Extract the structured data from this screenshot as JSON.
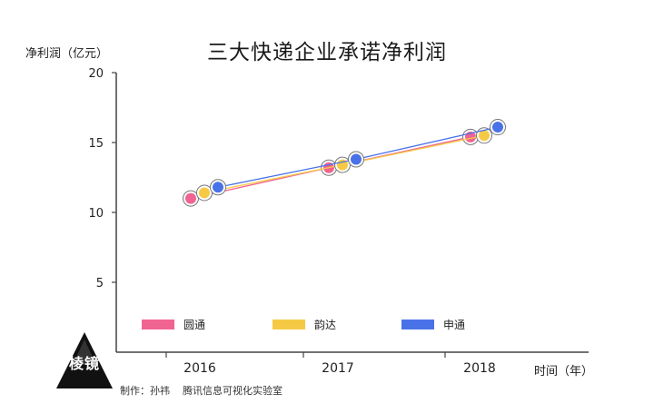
{
  "chart_data": {
    "type": "line",
    "title": "三大快递企业承诺净利润",
    "ylabel": "净利润（亿元）",
    "xlabel": "时间（年）",
    "ylim": [
      0,
      20
    ],
    "yticks": [
      5,
      10,
      15,
      20
    ],
    "categories": [
      "2016",
      "2017",
      "2018"
    ],
    "grid": false,
    "legend": "bottom",
    "series": [
      {
        "name": "圆通",
        "color": "#f06492",
        "x_offset": -0.3,
        "values": [
          11.0,
          13.2,
          15.4
        ]
      },
      {
        "name": "韵达",
        "color": "#f6c945",
        "x_offset": -0.15,
        "values": [
          11.4,
          13.4,
          15.5
        ]
      },
      {
        "name": "申通",
        "color": "#4a72e8",
        "x_offset": 0.0,
        "values": [
          11.8,
          13.8,
          16.1
        ]
      }
    ]
  },
  "footer": {
    "credit": "制作：孙祎    腾讯信息可视化实验室",
    "logo_text": "棱镜"
  }
}
